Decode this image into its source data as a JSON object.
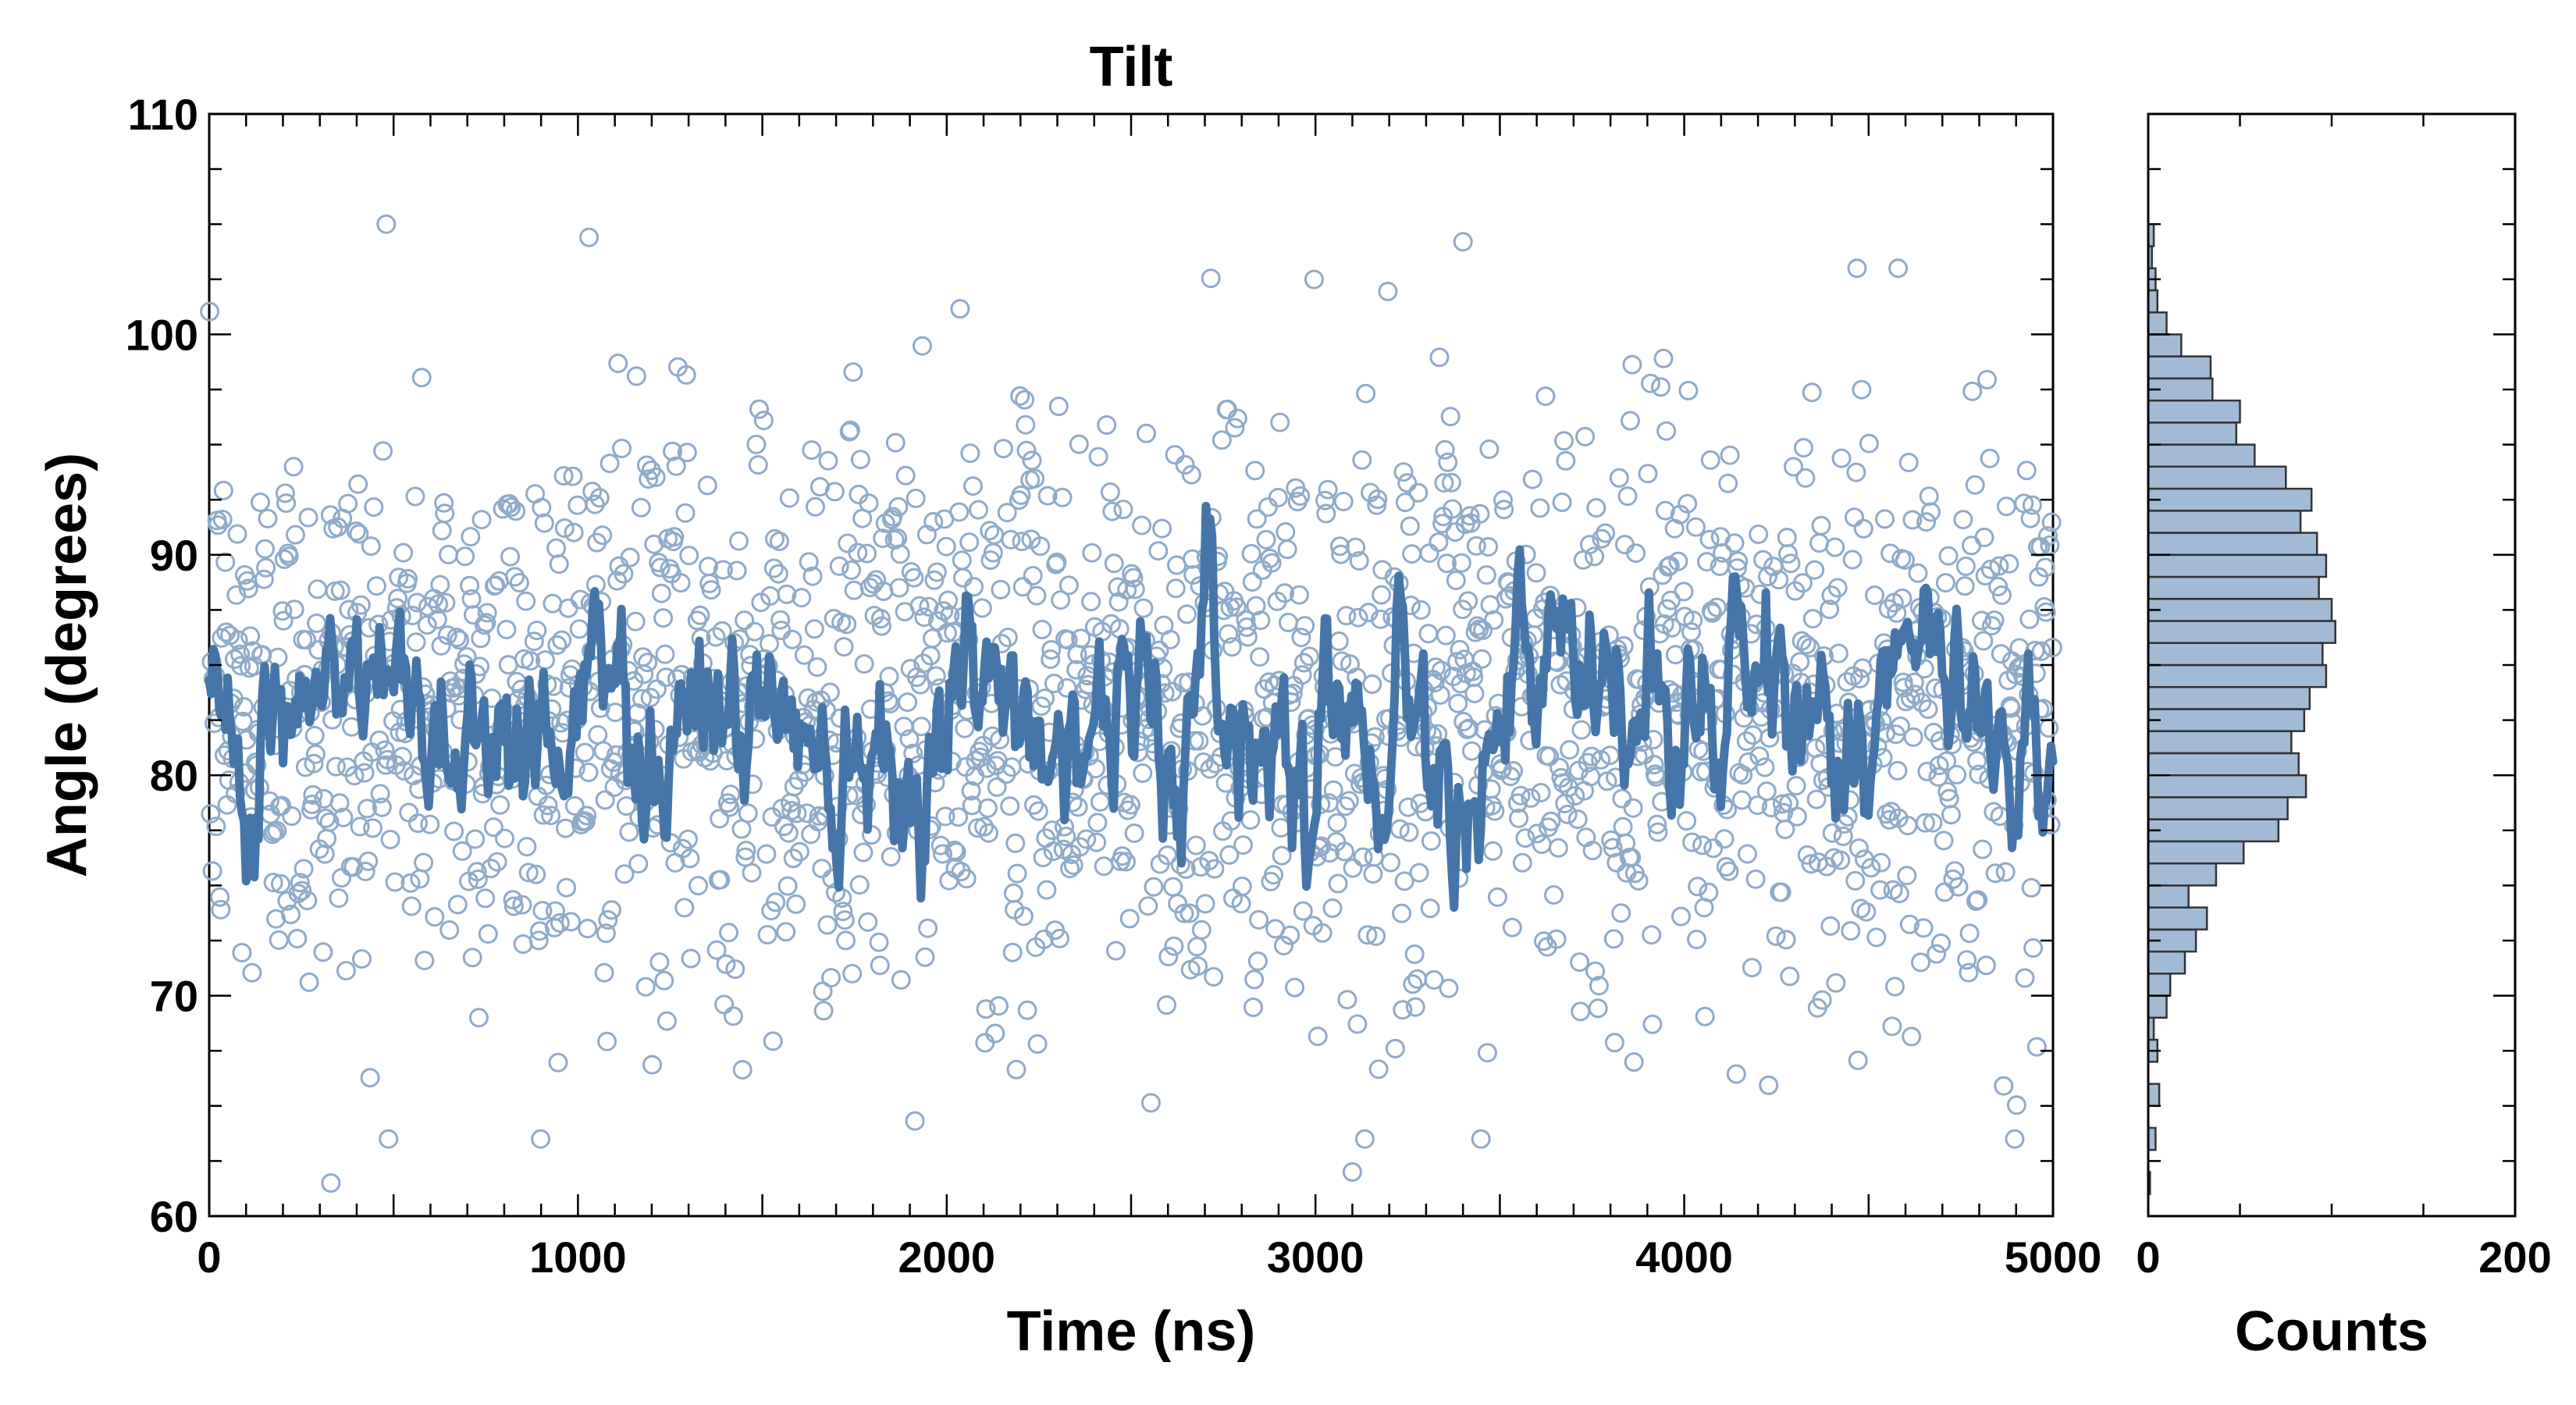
{
  "colors": {
    "series": "#4575a8",
    "scatter_edge": "#8fabc9",
    "hist_fill": "#a3bad4",
    "hist_edge": "#333333"
  },
  "chart_data": [
    {
      "type": "scatter",
      "title": "Tilt",
      "xlabel": "Time (ns)",
      "ylabel": "Angle (degrees)",
      "xlim": [
        0,
        5000
      ],
      "ylim": [
        60,
        110
      ],
      "xticks": [
        "0",
        "1000",
        "2000",
        "3000",
        "4000",
        "5000"
      ],
      "yticks": [
        "60",
        "70",
        "80",
        "90",
        "100",
        "110"
      ],
      "grid": false,
      "series": [
        {
          "kind": "scatter",
          "marker": "open-circle",
          "description_n_points": 2000,
          "x_range": [
            0,
            5000
          ],
          "center": 83,
          "spread_sd": 6.5,
          "min": 61.5,
          "max": 105
        },
        {
          "kind": "line",
          "note": "running average",
          "x_range": [
            0,
            5000
          ],
          "center": 83,
          "min": 74,
          "max": 93
        }
      ],
      "annotations_points": [
        {
          "x": 480,
          "y": 105
        },
        {
          "x": 1030,
          "y": 104.4
        },
        {
          "x": 3400,
          "y": 104.2
        },
        {
          "x": 4580,
          "y": 103
        },
        {
          "x": 330,
          "y": 61.5
        },
        {
          "x": 3100,
          "y": 62
        }
      ]
    },
    {
      "type": "bar",
      "orientation": "horizontal",
      "xlabel": "Counts",
      "xlim": [
        0,
        200
      ],
      "ylim": [
        60,
        110
      ],
      "xticks": [
        "0",
        "200"
      ],
      "bin_edges": [
        61,
        62,
        63,
        64,
        65,
        66,
        67,
        68,
        69,
        70,
        71,
        72,
        73,
        74,
        75,
        76,
        77,
        78,
        79,
        80,
        81,
        82,
        83,
        84,
        85,
        86,
        87,
        88,
        89,
        90,
        91,
        92,
        93,
        94,
        95,
        96,
        97,
        98,
        99,
        100,
        101,
        102,
        103,
        104,
        105
      ],
      "counts": [
        1,
        0,
        4,
        0,
        6,
        0,
        5,
        3,
        10,
        12,
        20,
        26,
        32,
        22,
        37,
        52,
        71,
        76,
        86,
        82,
        78,
        85,
        88,
        97,
        95,
        102,
        100,
        93,
        97,
        92,
        83,
        89,
        75,
        58,
        48,
        50,
        35,
        34,
        18,
        10,
        5,
        4,
        2,
        3
      ]
    }
  ]
}
